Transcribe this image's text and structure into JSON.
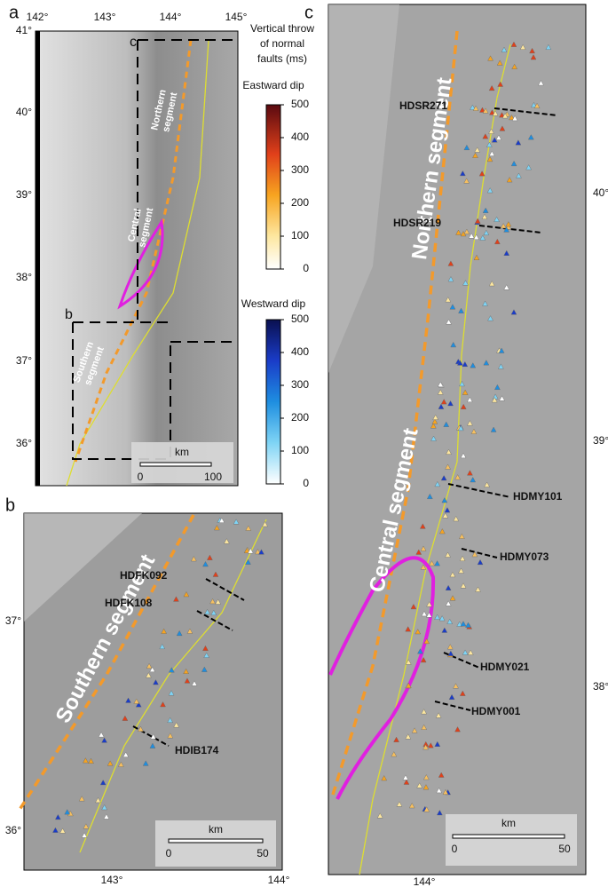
{
  "panel_a": {
    "label": "a",
    "lon_ticks": [
      "142°",
      "143°",
      "144°",
      "145°"
    ],
    "lat_ticks": [
      "41°",
      "40°",
      "39°",
      "38°",
      "37°",
      "36°"
    ],
    "box_labels": [
      "c",
      "b"
    ],
    "segments": [
      [
        "Northern",
        "segment"
      ],
      [
        "Central",
        "segment"
      ],
      [
        "Southern",
        "segment"
      ]
    ],
    "scale": {
      "unit": "km",
      "ticks": [
        "0",
        "100"
      ]
    }
  },
  "legend": {
    "title": [
      "Vertical throw",
      "of normal",
      "faults (ms)"
    ],
    "eastward": {
      "title": "Eastward dip",
      "ticks": [
        "500",
        "400",
        "300",
        "200",
        "100",
        "0"
      ]
    },
    "westward": {
      "title": "Westward dip",
      "ticks": [
        "500",
        "400",
        "300",
        "200",
        "100",
        "0"
      ]
    }
  },
  "panel_b": {
    "label": "b",
    "lat_ticks": [
      "37°",
      "36°"
    ],
    "lon_ticks": [
      "143°",
      "144°"
    ],
    "segment": "Southern segment",
    "profiles": [
      "HDFK092",
      "HDFK108",
      "HDIB174"
    ],
    "scale": {
      "unit": "km",
      "ticks": [
        "0",
        "50"
      ]
    }
  },
  "panel_c": {
    "label": "c",
    "lat_ticks": [
      "40°",
      "39°",
      "38°"
    ],
    "lon_ticks": [
      "144°"
    ],
    "segments": [
      "Northern segment",
      "Central segment"
    ],
    "profiles": [
      "HDSR271",
      "HDSR219",
      "HDMY101",
      "HDMY073",
      "HDMY021",
      "HDMY001"
    ],
    "scale": {
      "unit": "km",
      "ticks": [
        "0",
        "50"
      ]
    }
  }
}
